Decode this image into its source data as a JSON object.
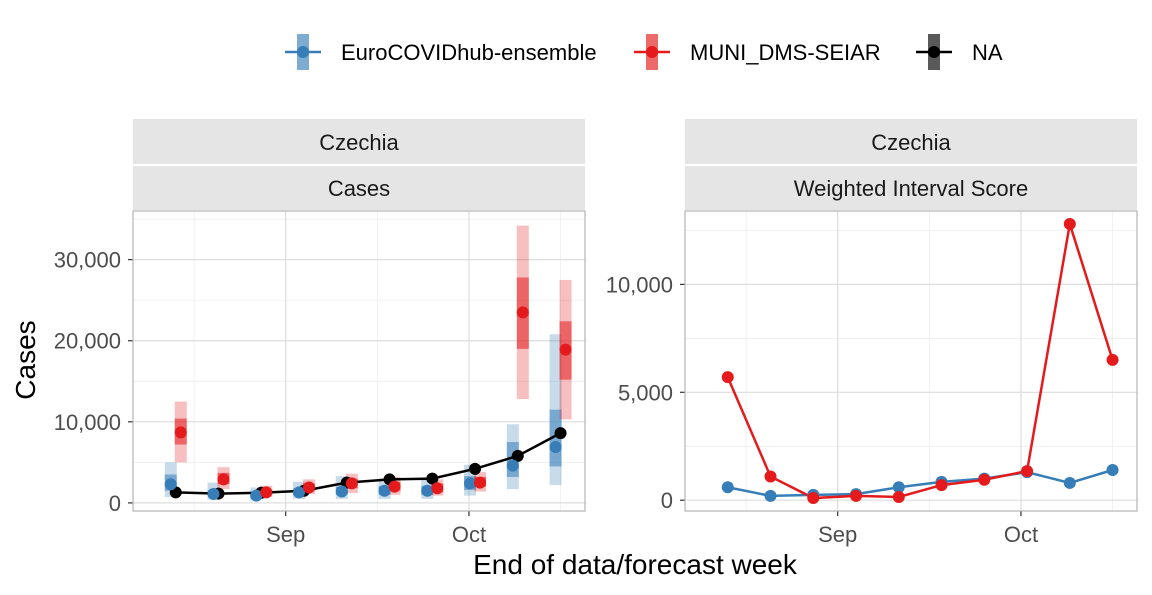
{
  "legend": {
    "placement": "top",
    "entries": [
      {
        "label": "EuroCOVIDhub-ensemble",
        "color": "#377EB8"
      },
      {
        "label": "MUNI_DMS-SEIAR",
        "color": "#E41A1C"
      },
      {
        "label": "NA",
        "color": "#000000"
      }
    ]
  },
  "axes": {
    "xlabel": "End of data/forecast week",
    "ylabel": "Cases"
  },
  "chart_data": [
    {
      "type": "line",
      "strip_top": "Czechia",
      "strip_bottom": "Cases",
      "grid": true,
      "x_dates": [
        "2021-08-14",
        "2021-08-21",
        "2021-08-28",
        "2021-09-04",
        "2021-09-11",
        "2021-09-18",
        "2021-09-25",
        "2021-10-02",
        "2021-10-09",
        "2021-10-16"
      ],
      "x_ticks": [
        {
          "date": "2021-09-01",
          "label": "Sep"
        },
        {
          "date": "2021-10-01",
          "label": "Oct"
        }
      ],
      "xlim": [
        "2021-08-07",
        "2021-10-20"
      ],
      "ylim": [
        -1000,
        36000
      ],
      "y_ticks": [
        {
          "value": 0,
          "label": "0"
        },
        {
          "value": 10000,
          "label": "10,000"
        },
        {
          "value": 20000,
          "label": "20,000"
        },
        {
          "value": 30000,
          "label": "30,000"
        }
      ],
      "series": [
        {
          "name": "NA",
          "color": "#000000",
          "values": [
            1300,
            1150,
            1250,
            1500,
            2500,
            2900,
            3000,
            4200,
            5800,
            8600
          ]
        },
        {
          "name": "EuroCOVIDhub-ensemble",
          "color": "#377EB8",
          "values": [
            2300,
            1100,
            900,
            1300,
            1400,
            1500,
            1500,
            2400,
            4600,
            6900
          ],
          "inner_interval": [
            [
              1500,
              3500
            ],
            [
              800,
              1600
            ],
            [
              600,
              1300
            ],
            [
              900,
              1800
            ],
            [
              1000,
              2000
            ],
            [
              1000,
              2100
            ],
            [
              1000,
              2100
            ],
            [
              1600,
              3300
            ],
            [
              3200,
              7500
            ],
            [
              4500,
              11500
            ]
          ],
          "outer_interval": [
            [
              700,
              5000
            ],
            [
              400,
              2500
            ],
            [
              300,
              1900
            ],
            [
              500,
              2600
            ],
            [
              500,
              3300
            ],
            [
              500,
              3000
            ],
            [
              500,
              3000
            ],
            [
              900,
              4700
            ],
            [
              1700,
              9700
            ],
            [
              2200,
              20800
            ]
          ]
        },
        {
          "name": "MUNI_DMS-SEIAR",
          "color": "#E41A1C",
          "values": [
            8700,
            2900,
            1300,
            1900,
            2400,
            2000,
            1800,
            2500,
            23500,
            18900
          ],
          "inner_interval": [
            [
              7200,
              10400
            ],
            [
              2300,
              3700
            ],
            [
              1000,
              1600
            ],
            [
              1500,
              2400
            ],
            [
              1800,
              3000
            ],
            [
              1500,
              2600
            ],
            [
              1300,
              2400
            ],
            [
              2000,
              3200
            ],
            [
              19000,
              27800
            ],
            [
              15200,
              22400
            ]
          ],
          "outer_interval": [
            [
              5000,
              12500
            ],
            [
              1700,
              4400
            ],
            [
              700,
              2100
            ],
            [
              1100,
              2900
            ],
            [
              1200,
              3600
            ],
            [
              1000,
              3200
            ],
            [
              900,
              2900
            ],
            [
              1400,
              3800
            ],
            [
              12800,
              34200
            ],
            [
              10300,
              27500
            ]
          ]
        }
      ]
    },
    {
      "type": "line",
      "strip_top": "Czechia",
      "strip_bottom": "Weighted Interval Score",
      "grid": true,
      "x_dates": [
        "2021-08-14",
        "2021-08-21",
        "2021-08-28",
        "2021-09-04",
        "2021-09-11",
        "2021-09-18",
        "2021-09-25",
        "2021-10-02",
        "2021-10-09",
        "2021-10-16"
      ],
      "x_ticks": [
        {
          "date": "2021-09-01",
          "label": "Sep"
        },
        {
          "date": "2021-10-01",
          "label": "Oct"
        }
      ],
      "xlim": [
        "2021-08-07",
        "2021-10-20"
      ],
      "ylim": [
        -500,
        13400
      ],
      "y_ticks": [
        {
          "value": 0,
          "label": "0"
        },
        {
          "value": 5000,
          "label": "5,000"
        },
        {
          "value": 10000,
          "label": "10,000"
        }
      ],
      "series": [
        {
          "name": "EuroCOVIDhub-ensemble",
          "color": "#377EB8",
          "values": [
            600,
            200,
            250,
            280,
            600,
            850,
            1000,
            1300,
            800,
            1400
          ]
        },
        {
          "name": "MUNI_DMS-SEIAR",
          "color": "#E41A1C",
          "values": [
            5700,
            1100,
            100,
            200,
            150,
            700,
            950,
            1350,
            12800,
            6500
          ]
        }
      ]
    }
  ]
}
